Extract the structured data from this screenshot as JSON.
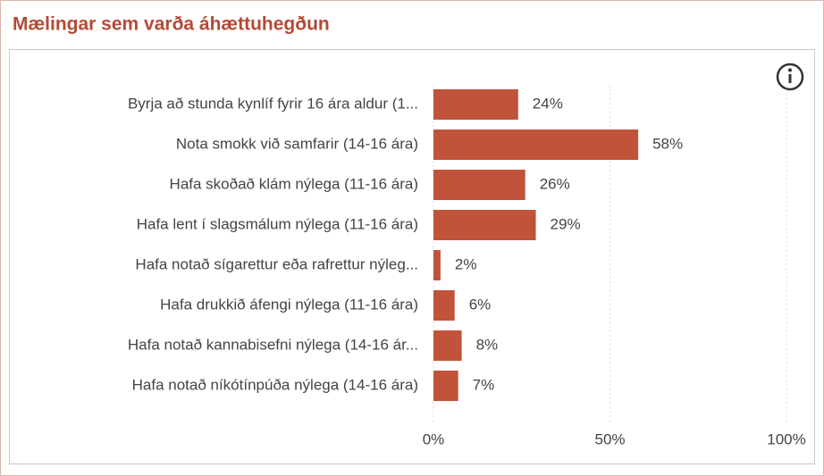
{
  "chart_data": {
    "type": "bar",
    "orientation": "horizontal",
    "title": "Mælingar sem varða áhættuhegðun",
    "categories": [
      "Byrja að stunda kynlíf fyrir 16 ára aldur (1...",
      "Nota smokk við samfarir (14-16 ára)",
      "Hafa skoðað klám nýlega (11-16 ára)",
      "Hafa lent í slagsmálum nýlega (11-16 ára)",
      "Hafa notað sígarettur eða rafrettur nýleg...",
      "Hafa drukkið áfengi nýlega (11-16 ára)",
      "Hafa notað kannabisefni nýlega (14-16 ár...",
      "Hafa notað níkótínpúða nýlega (14-16 ára)"
    ],
    "values": [
      24,
      58,
      26,
      29,
      2,
      6,
      8,
      7
    ],
    "value_labels": [
      "24%",
      "58%",
      "26%",
      "29%",
      "2%",
      "6%",
      "8%",
      "7%"
    ],
    "color": "#c0533a",
    "xlim": [
      0,
      100
    ],
    "xticks": [
      {
        "value": 0,
        "label": "0%"
      },
      {
        "value": 50,
        "label": "50%"
      },
      {
        "value": 100,
        "label": "100%"
      }
    ],
    "grid": true
  }
}
